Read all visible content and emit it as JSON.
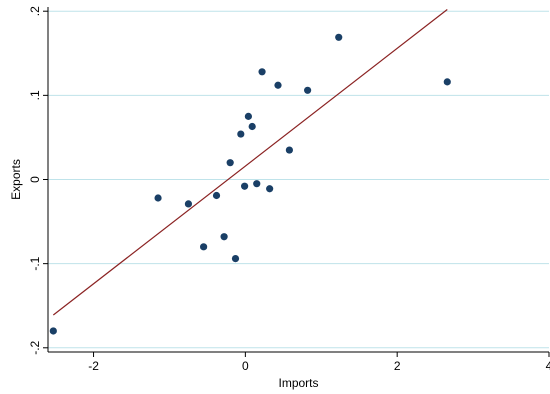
{
  "chart_data": {
    "type": "scatter",
    "xlabel": "Imports",
    "ylabel": "Exports",
    "xlim": [
      -2.6,
      4
    ],
    "ylim": [
      -0.205,
      0.205
    ],
    "x_ticks": [
      {
        "value": -2,
        "label": "-2"
      },
      {
        "value": 0,
        "label": "0"
      },
      {
        "value": 2,
        "label": "2"
      },
      {
        "value": 4,
        "label": "4"
      }
    ],
    "y_ticks": [
      {
        "value": -0.2,
        "label": "-.2"
      },
      {
        "value": -0.1,
        "label": "-.1"
      },
      {
        "value": 0,
        "label": "0"
      },
      {
        "value": 0.1,
        "label": ".1"
      },
      {
        "value": 0.2,
        "label": ".2"
      }
    ],
    "grid": "horizontal",
    "points": [
      {
        "x": -2.53,
        "y": -0.18
      },
      {
        "x": -1.15,
        "y": -0.022
      },
      {
        "x": -0.75,
        "y": -0.029
      },
      {
        "x": -0.55,
        "y": -0.08
      },
      {
        "x": -0.38,
        "y": -0.019
      },
      {
        "x": -0.28,
        "y": -0.068
      },
      {
        "x": -0.2,
        "y": 0.02
      },
      {
        "x": -0.13,
        "y": -0.094
      },
      {
        "x": -0.06,
        "y": 0.054
      },
      {
        "x": -0.01,
        "y": -0.008
      },
      {
        "x": 0.04,
        "y": 0.075
      },
      {
        "x": 0.09,
        "y": 0.063
      },
      {
        "x": 0.15,
        "y": -0.005
      },
      {
        "x": 0.22,
        "y": 0.128
      },
      {
        "x": 0.32,
        "y": -0.011
      },
      {
        "x": 0.43,
        "y": 0.112
      },
      {
        "x": 0.58,
        "y": 0.035
      },
      {
        "x": 0.82,
        "y": 0.106
      },
      {
        "x": 1.23,
        "y": 0.169
      },
      {
        "x": 2.66,
        "y": 0.116
      }
    ],
    "fit_line": {
      "x": [
        -2.53,
        2.66
      ],
      "y": [
        -0.161,
        0.202
      ]
    },
    "colors": {
      "points": "#1a3f66",
      "fit_line": "#8b2323",
      "grid": "#bfe3ea",
      "axis": "#000000"
    }
  }
}
